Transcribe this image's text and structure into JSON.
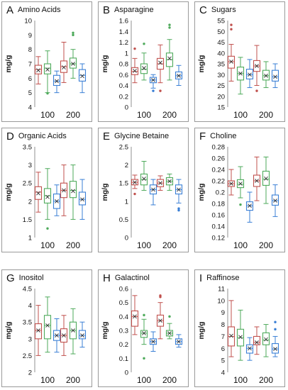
{
  "colors": {
    "red": "#c0504d",
    "green": "#4eaa5b",
    "blue": "#3a7fd5",
    "axis": "#777777",
    "text": "#111111"
  },
  "chart_data": [
    {
      "type": "box",
      "letter": "A",
      "title": "Amino Acids",
      "ylabel": "mg/g",
      "ylim": [
        4,
        10
      ],
      "yticks": [
        "4",
        "5",
        "6",
        "7",
        "8",
        "9",
        "10"
      ],
      "categories": [
        "100",
        "200"
      ],
      "boxes": [
        {
          "category": "100",
          "color": "red",
          "whisker_low": 5.6,
          "q1": 6.3,
          "median": 6.6,
          "mean": 6.55,
          "q3": 6.9,
          "whisker_high": 7.5,
          "outliers": []
        },
        {
          "category": "100",
          "color": "green",
          "whisker_low": 5.0,
          "q1": 6.3,
          "median": 6.7,
          "mean": 6.6,
          "q3": 7.0,
          "whisker_high": 7.9,
          "outliers": [
            4.95
          ]
        },
        {
          "category": "100",
          "color": "blue",
          "whisker_low": 5.0,
          "q1": 5.5,
          "median": 5.8,
          "mean": 5.8,
          "q3": 6.2,
          "whisker_high": 6.5,
          "outliers": []
        },
        {
          "category": "200",
          "color": "red",
          "whisker_low": 5.7,
          "q1": 6.4,
          "median": 6.8,
          "mean": 6.75,
          "q3": 7.2,
          "whisker_high": 8.5,
          "outliers": []
        },
        {
          "category": "200",
          "color": "green",
          "whisker_low": 6.0,
          "q1": 6.7,
          "median": 7.0,
          "mean": 7.0,
          "q3": 7.4,
          "whisker_high": 8.0,
          "outliers": [
            9.0,
            9.15
          ]
        },
        {
          "category": "200",
          "color": "blue",
          "whisker_low": 5.0,
          "q1": 5.8,
          "median": 6.2,
          "mean": 6.15,
          "q3": 6.6,
          "whisker_high": 7.0,
          "outliers": []
        }
      ]
    },
    {
      "type": "box",
      "letter": "B",
      "title": "Asparagine",
      "ylabel": "mg/g",
      "ylim": [
        0,
        1.6
      ],
      "yticks": [
        "0",
        "0.2",
        "0.4",
        "0.6",
        "0.8",
        "1",
        "1.2",
        "1.4",
        "1.6"
      ],
      "categories": [
        "100",
        "200"
      ],
      "boxes": [
        {
          "category": "100",
          "color": "red",
          "whisker_low": 0.45,
          "q1": 0.6,
          "median": 0.66,
          "mean": 0.67,
          "q3": 0.73,
          "whisker_high": 0.9,
          "outliers": [
            1.08
          ]
        },
        {
          "category": "100",
          "color": "green",
          "whisker_low": 0.5,
          "q1": 0.62,
          "median": 0.7,
          "mean": 0.72,
          "q3": 0.8,
          "whisker_high": 1.0,
          "outliers": [
            1.17
          ]
        },
        {
          "category": "100",
          "color": "blue",
          "whisker_low": 0.35,
          "q1": 0.45,
          "median": 0.5,
          "mean": 0.5,
          "q3": 0.55,
          "whisker_high": 0.6,
          "outliers": [
            0.3
          ]
        },
        {
          "category": "200",
          "color": "red",
          "whisker_low": 0.45,
          "q1": 0.7,
          "median": 0.8,
          "mean": 0.82,
          "q3": 0.9,
          "whisker_high": 1.15,
          "outliers": [
            0.3
          ]
        },
        {
          "category": "200",
          "color": "green",
          "whisker_low": 0.5,
          "q1": 0.75,
          "median": 0.88,
          "mean": 0.9,
          "q3": 1.0,
          "whisker_high": 1.25,
          "outliers": [
            1.47,
            1.52
          ]
        },
        {
          "category": "200",
          "color": "blue",
          "whisker_low": 0.4,
          "q1": 0.52,
          "median": 0.58,
          "mean": 0.58,
          "q3": 0.65,
          "whisker_high": 0.77,
          "outliers": []
        }
      ]
    },
    {
      "type": "box",
      "letter": "C",
      "title": "Sugars",
      "ylabel": "mg/g",
      "ylim": [
        15,
        55
      ],
      "yticks": [
        "15",
        "20",
        "25",
        "30",
        "35",
        "40",
        "45",
        "50",
        "55"
      ],
      "categories": [
        "100",
        "200"
      ],
      "boxes": [
        {
          "category": "100",
          "color": "red",
          "whisker_low": 27,
          "q1": 33,
          "median": 36,
          "mean": 36,
          "q3": 38.5,
          "whisker_high": 44,
          "outliers": [
            51,
            53
          ]
        },
        {
          "category": "100",
          "color": "green",
          "whisker_low": 21,
          "q1": 27.5,
          "median": 30.5,
          "mean": 30.5,
          "q3": 33.5,
          "whisker_high": 38,
          "outliers": []
        },
        {
          "category": "100",
          "color": "blue",
          "whisker_low": 24,
          "q1": 28,
          "median": 30,
          "mean": 30,
          "q3": 32.5,
          "whisker_high": 37,
          "outliers": []
        },
        {
          "category": "200",
          "color": "red",
          "whisker_low": 25,
          "q1": 31.5,
          "median": 34,
          "mean": 34,
          "q3": 36.5,
          "whisker_high": 43.5,
          "outliers": [
            22.5
          ]
        },
        {
          "category": "200",
          "color": "green",
          "whisker_low": 24,
          "q1": 27.5,
          "median": 29.5,
          "mean": 29.5,
          "q3": 32,
          "whisker_high": 36,
          "outliers": []
        },
        {
          "category": "200",
          "color": "blue",
          "whisker_low": 24,
          "q1": 27,
          "median": 29,
          "mean": 29,
          "q3": 32,
          "whisker_high": 35,
          "outliers": []
        }
      ]
    },
    {
      "type": "box",
      "letter": "D",
      "title": "Organic Acids",
      "ylabel": "mg/g",
      "ylim": [
        1,
        3.5
      ],
      "yticks": [
        "1",
        "1.5",
        "2",
        "2.5",
        "3",
        "3.5"
      ],
      "categories": [
        "100",
        "200"
      ],
      "boxes": [
        {
          "category": "100",
          "color": "red",
          "whisker_low": 1.7,
          "q1": 2.05,
          "median": 2.25,
          "mean": 2.22,
          "q3": 2.4,
          "whisker_high": 2.8,
          "outliers": []
        },
        {
          "category": "100",
          "color": "green",
          "whisker_low": 1.5,
          "q1": 1.95,
          "median": 2.15,
          "mean": 2.12,
          "q3": 2.35,
          "whisker_high": 2.9,
          "outliers": [
            1.25
          ]
        },
        {
          "category": "100",
          "color": "blue",
          "whisker_low": 1.6,
          "q1": 1.8,
          "median": 2.0,
          "mean": 2.0,
          "q3": 2.2,
          "whisker_high": 2.45,
          "outliers": []
        },
        {
          "category": "200",
          "color": "red",
          "whisker_low": 1.6,
          "q1": 2.1,
          "median": 2.3,
          "mean": 2.3,
          "q3": 2.5,
          "whisker_high": 3.0,
          "outliers": []
        },
        {
          "category": "200",
          "color": "green",
          "whisker_low": 1.5,
          "q1": 2.1,
          "median": 2.3,
          "mean": 2.28,
          "q3": 2.55,
          "whisker_high": 3.0,
          "outliers": []
        },
        {
          "category": "200",
          "color": "blue",
          "whisker_low": 1.5,
          "q1": 1.9,
          "median": 2.05,
          "mean": 2.05,
          "q3": 2.25,
          "whisker_high": 2.6,
          "outliers": []
        }
      ]
    },
    {
      "type": "box",
      "letter": "E",
      "title": "Glycine Betaine",
      "ylabel": "mg/g",
      "ylim": [
        0,
        2.5
      ],
      "yticks": [
        "0",
        "0.5",
        "1",
        "1.5",
        "2",
        "2.5"
      ],
      "categories": [
        "100",
        "200"
      ],
      "boxes": [
        {
          "category": "100",
          "color": "red",
          "whisker_low": 1.35,
          "q1": 1.45,
          "median": 1.52,
          "mean": 1.52,
          "q3": 1.6,
          "whisker_high": 1.72,
          "outliers": [
            1.2
          ]
        },
        {
          "category": "100",
          "color": "green",
          "whisker_low": 1.3,
          "q1": 1.45,
          "median": 1.6,
          "mean": 1.62,
          "q3": 1.75,
          "whisker_high": 2.1,
          "outliers": []
        },
        {
          "category": "100",
          "color": "blue",
          "whisker_low": 0.9,
          "q1": 1.2,
          "median": 1.32,
          "mean": 1.32,
          "q3": 1.45,
          "whisker_high": 1.6,
          "outliers": []
        },
        {
          "category": "200",
          "color": "red",
          "whisker_low": 1.3,
          "q1": 1.4,
          "median": 1.5,
          "mean": 1.5,
          "q3": 1.6,
          "whisker_high": 1.7,
          "outliers": []
        },
        {
          "category": "200",
          "color": "green",
          "whisker_low": 1.3,
          "q1": 1.45,
          "median": 1.55,
          "mean": 1.55,
          "q3": 1.65,
          "whisker_high": 1.75,
          "outliers": []
        },
        {
          "category": "200",
          "color": "blue",
          "whisker_low": 0.95,
          "q1": 1.2,
          "median": 1.32,
          "mean": 1.32,
          "q3": 1.45,
          "whisker_high": 1.6,
          "outliers": [
            0.8,
            0.75
          ]
        }
      ]
    },
    {
      "type": "box",
      "letter": "F",
      "title": "Choline",
      "ylabel": "mg/g",
      "ylim": [
        0.12,
        0.28
      ],
      "yticks": [
        "0.12",
        "0.14",
        "0.16",
        "0.18",
        "0.2",
        "0.22",
        "0.24",
        "0.26",
        "0.28"
      ],
      "categories": [
        "100",
        "200"
      ],
      "boxes": [
        {
          "category": "100",
          "color": "red",
          "whisker_low": 0.195,
          "q1": 0.21,
          "median": 0.215,
          "mean": 0.215,
          "q3": 0.22,
          "whisker_high": 0.24,
          "outliers": []
        },
        {
          "category": "100",
          "color": "green",
          "whisker_low": 0.19,
          "q1": 0.208,
          "median": 0.214,
          "mean": 0.215,
          "q3": 0.222,
          "whisker_high": 0.245,
          "outliers": [
            0.178
          ]
        },
        {
          "category": "100",
          "color": "blue",
          "whisker_low": 0.147,
          "q1": 0.168,
          "median": 0.176,
          "mean": 0.176,
          "q3": 0.183,
          "whisker_high": 0.2,
          "outliers": []
        },
        {
          "category": "200",
          "color": "red",
          "whisker_low": 0.185,
          "q1": 0.21,
          "median": 0.22,
          "mean": 0.22,
          "q3": 0.23,
          "whisker_high": 0.262,
          "outliers": []
        },
        {
          "category": "200",
          "color": "green",
          "whisker_low": 0.18,
          "q1": 0.212,
          "median": 0.223,
          "mean": 0.224,
          "q3": 0.237,
          "whisker_high": 0.262,
          "outliers": []
        },
        {
          "category": "200",
          "color": "blue",
          "whisker_low": 0.157,
          "q1": 0.177,
          "median": 0.185,
          "mean": 0.185,
          "q3": 0.195,
          "whisker_high": 0.213,
          "outliers": []
        }
      ]
    },
    {
      "type": "box",
      "letter": "G",
      "title": "Inositol",
      "ylabel": "mg/g",
      "ylim": [
        2,
        4.5
      ],
      "yticks": [
        "2",
        "2.5",
        "3",
        "3.5",
        "4",
        "4.5"
      ],
      "categories": [
        "100",
        "200"
      ],
      "boxes": [
        {
          "category": "100",
          "color": "red",
          "whisker_low": 2.5,
          "q1": 3.0,
          "median": 3.25,
          "mean": 3.25,
          "q3": 3.45,
          "whisker_high": 4.0,
          "outliers": []
        },
        {
          "category": "100",
          "color": "green",
          "whisker_low": 2.6,
          "q1": 3.0,
          "median": 3.4,
          "mean": 3.4,
          "q3": 3.7,
          "whisker_high": 4.25,
          "outliers": []
        },
        {
          "category": "100",
          "color": "blue",
          "whisker_low": 2.6,
          "q1": 2.95,
          "median": 3.1,
          "mean": 3.1,
          "q3": 3.25,
          "whisker_high": 3.6,
          "outliers": []
        },
        {
          "category": "200",
          "color": "red",
          "whisker_low": 2.5,
          "q1": 2.9,
          "median": 3.1,
          "mean": 3.1,
          "q3": 3.3,
          "whisker_high": 3.7,
          "outliers": []
        },
        {
          "category": "200",
          "color": "green",
          "whisker_low": 2.55,
          "q1": 3.0,
          "median": 3.25,
          "mean": 3.25,
          "q3": 3.5,
          "whisker_high": 3.9,
          "outliers": []
        },
        {
          "category": "200",
          "color": "blue",
          "whisker_low": 2.75,
          "q1": 3.0,
          "median": 3.1,
          "mean": 3.1,
          "q3": 3.25,
          "whisker_high": 3.5,
          "outliers": []
        }
      ]
    },
    {
      "type": "box",
      "letter": "H",
      "title": "Galactinol",
      "ylabel": "mg/g",
      "ylim": [
        0,
        0.6
      ],
      "yticks": [
        "0",
        "0.1",
        "0.2",
        "0.3",
        "0.4",
        "0.5",
        "0.6"
      ],
      "categories": [
        "100",
        "200"
      ],
      "boxes": [
        {
          "category": "100",
          "color": "red",
          "whisker_low": 0.27,
          "q1": 0.33,
          "median": 0.4,
          "mean": 0.4,
          "q3": 0.44,
          "whisker_high": 0.55,
          "outliers": []
        },
        {
          "category": "100",
          "color": "green",
          "whisker_low": 0.2,
          "q1": 0.25,
          "median": 0.28,
          "mean": 0.28,
          "q3": 0.3,
          "whisker_high": 0.38,
          "outliers": [
            0.1,
            0.41
          ]
        },
        {
          "category": "100",
          "color": "blue",
          "whisker_low": 0.15,
          "q1": 0.2,
          "median": 0.22,
          "mean": 0.22,
          "q3": 0.24,
          "whisker_high": 0.29,
          "outliers": []
        },
        {
          "category": "200",
          "color": "red",
          "whisker_low": 0.24,
          "q1": 0.33,
          "median": 0.37,
          "mean": 0.37,
          "q3": 0.41,
          "whisker_high": 0.5,
          "outliers": [
            0.54,
            0.55
          ]
        },
        {
          "category": "200",
          "color": "green",
          "whisker_low": 0.24,
          "q1": 0.26,
          "median": 0.28,
          "mean": 0.28,
          "q3": 0.3,
          "whisker_high": 0.35,
          "outliers": [
            0.4
          ]
        },
        {
          "category": "200",
          "color": "blue",
          "whisker_low": 0.18,
          "q1": 0.2,
          "median": 0.22,
          "mean": 0.22,
          "q3": 0.24,
          "whisker_high": 0.27,
          "outliers": []
        }
      ]
    },
    {
      "type": "box",
      "letter": "I",
      "title": "Raffinose",
      "ylabel": "mg/g",
      "ylim": [
        4,
        11
      ],
      "yticks": [
        "4",
        "5",
        "6",
        "7",
        "8",
        "9",
        "10",
        "11"
      ],
      "categories": [
        "100",
        "200"
      ],
      "boxes": [
        {
          "category": "100",
          "color": "red",
          "whisker_low": 5.3,
          "q1": 6.2,
          "median": 7.0,
          "mean": 7.05,
          "q3": 7.8,
          "whisker_high": 10.0,
          "outliers": []
        },
        {
          "category": "100",
          "color": "green",
          "whisker_low": 5.0,
          "q1": 6.2,
          "median": 6.9,
          "mean": 6.95,
          "q3": 7.6,
          "whisker_high": 9.2,
          "outliers": []
        },
        {
          "category": "100",
          "color": "blue",
          "whisker_low": 5.0,
          "q1": 5.6,
          "median": 6.0,
          "mean": 6.0,
          "q3": 6.3,
          "whisker_high": 6.9,
          "outliers": []
        },
        {
          "category": "200",
          "color": "red",
          "whisker_low": 5.5,
          "q1": 6.3,
          "median": 6.5,
          "mean": 6.5,
          "q3": 7.0,
          "whisker_high": 7.8,
          "outliers": []
        },
        {
          "category": "200",
          "color": "green",
          "whisker_low": 5.3,
          "q1": 6.3,
          "median": 6.7,
          "mean": 6.75,
          "q3": 7.3,
          "whisker_high": 8.0,
          "outliers": []
        },
        {
          "category": "200",
          "color": "blue",
          "whisker_low": 5.3,
          "q1": 5.6,
          "median": 5.95,
          "mean": 5.95,
          "q3": 6.4,
          "whisker_high": 7.0,
          "outliers": [
            7.6,
            8.2
          ]
        }
      ]
    }
  ]
}
